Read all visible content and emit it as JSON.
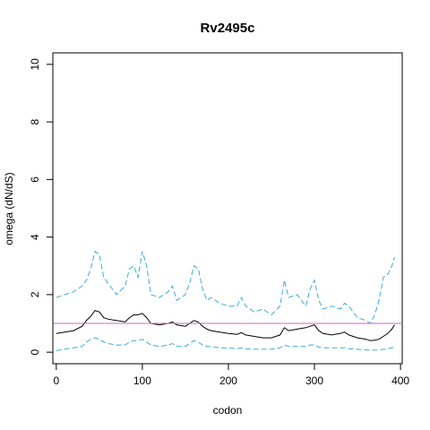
{
  "chart_data": {
    "type": "line",
    "title": "Rv2495c",
    "xlabel": "codon",
    "ylabel": "omega (dN/dS)",
    "xlim": [
      -4,
      402
    ],
    "ylim": [
      -0.4,
      10.4
    ],
    "x_ticks": [
      0,
      100,
      200,
      300,
      400
    ],
    "y_ticks": [
      0,
      2,
      4,
      6,
      8,
      10
    ],
    "x_tick_labels": [
      "0",
      "100",
      "200",
      "300",
      "400"
    ],
    "y_tick_labels": [
      "0",
      "2",
      "4",
      "6",
      "8",
      "10"
    ],
    "grid": false,
    "reference_line": {
      "y": 1,
      "color": "#cc66cc"
    },
    "series": [
      {
        "style": "dashed",
        "color": "#3fa9e0",
        "x": [
          0,
          10,
          20,
          30,
          35,
          40,
          45,
          50,
          55,
          60,
          70,
          80,
          85,
          90,
          95,
          100,
          105,
          110,
          120,
          130,
          135,
          140,
          150,
          155,
          160,
          165,
          170,
          175,
          180,
          190,
          200,
          210,
          215,
          220,
          230,
          240,
          250,
          260,
          265,
          270,
          280,
          290,
          295,
          300,
          305,
          310,
          320,
          330,
          335,
          340,
          350,
          360,
          365,
          370,
          375,
          380,
          385,
          390,
          393
        ],
        "y": [
          1.9,
          2.0,
          2.1,
          2.3,
          2.5,
          2.9,
          3.5,
          3.4,
          2.6,
          2.4,
          2.0,
          2.3,
          2.9,
          3.0,
          2.6,
          3.5,
          3.0,
          2.0,
          1.9,
          2.1,
          2.3,
          1.8,
          2.0,
          2.4,
          3.0,
          2.9,
          2.2,
          1.8,
          1.9,
          1.7,
          1.6,
          1.6,
          1.9,
          1.6,
          1.4,
          1.5,
          1.3,
          1.6,
          2.5,
          1.9,
          2.0,
          1.6,
          2.2,
          2.5,
          1.8,
          1.5,
          1.6,
          1.5,
          1.7,
          1.6,
          1.2,
          1.1,
          1.0,
          1.3,
          1.8,
          2.6,
          2.7,
          3.0,
          3.3
        ]
      },
      {
        "style": "solid",
        "color": "#000000",
        "x": [
          0,
          10,
          20,
          30,
          35,
          40,
          45,
          50,
          55,
          60,
          70,
          80,
          85,
          90,
          95,
          100,
          105,
          110,
          120,
          130,
          135,
          140,
          150,
          155,
          160,
          165,
          170,
          175,
          180,
          190,
          200,
          210,
          215,
          220,
          230,
          240,
          250,
          260,
          265,
          270,
          280,
          290,
          295,
          300,
          305,
          310,
          320,
          330,
          335,
          340,
          350,
          360,
          365,
          370,
          375,
          380,
          385,
          390,
          393
        ],
        "y": [
          0.65,
          0.7,
          0.75,
          0.9,
          1.1,
          1.25,
          1.45,
          1.4,
          1.2,
          1.15,
          1.1,
          1.05,
          1.2,
          1.3,
          1.3,
          1.35,
          1.2,
          1.0,
          0.95,
          1.0,
          1.05,
          0.95,
          0.9,
          1.0,
          1.1,
          1.05,
          0.9,
          0.8,
          0.75,
          0.7,
          0.65,
          0.62,
          0.68,
          0.6,
          0.55,
          0.5,
          0.5,
          0.6,
          0.85,
          0.75,
          0.8,
          0.85,
          0.9,
          0.95,
          0.75,
          0.65,
          0.6,
          0.65,
          0.7,
          0.6,
          0.5,
          0.45,
          0.4,
          0.42,
          0.45,
          0.55,
          0.65,
          0.8,
          0.95
        ]
      },
      {
        "style": "dashed",
        "color": "#3fa9e0",
        "x": [
          0,
          10,
          20,
          30,
          35,
          40,
          45,
          50,
          55,
          60,
          70,
          80,
          85,
          90,
          95,
          100,
          105,
          110,
          120,
          130,
          135,
          140,
          150,
          155,
          160,
          165,
          170,
          175,
          180,
          190,
          200,
          210,
          215,
          220,
          230,
          240,
          250,
          260,
          265,
          270,
          280,
          290,
          295,
          300,
          305,
          310,
          320,
          330,
          335,
          340,
          350,
          360,
          365,
          370,
          375,
          380,
          385,
          390,
          393
        ],
        "y": [
          0.05,
          0.1,
          0.15,
          0.2,
          0.35,
          0.45,
          0.5,
          0.45,
          0.35,
          0.3,
          0.25,
          0.25,
          0.35,
          0.4,
          0.4,
          0.45,
          0.35,
          0.25,
          0.2,
          0.25,
          0.3,
          0.2,
          0.2,
          0.3,
          0.4,
          0.35,
          0.25,
          0.2,
          0.2,
          0.15,
          0.15,
          0.12,
          0.15,
          0.12,
          0.1,
          0.1,
          0.1,
          0.15,
          0.25,
          0.2,
          0.2,
          0.2,
          0.25,
          0.25,
          0.18,
          0.15,
          0.15,
          0.15,
          0.15,
          0.12,
          0.1,
          0.08,
          0.07,
          0.07,
          0.08,
          0.1,
          0.12,
          0.15,
          0.18
        ]
      }
    ]
  }
}
